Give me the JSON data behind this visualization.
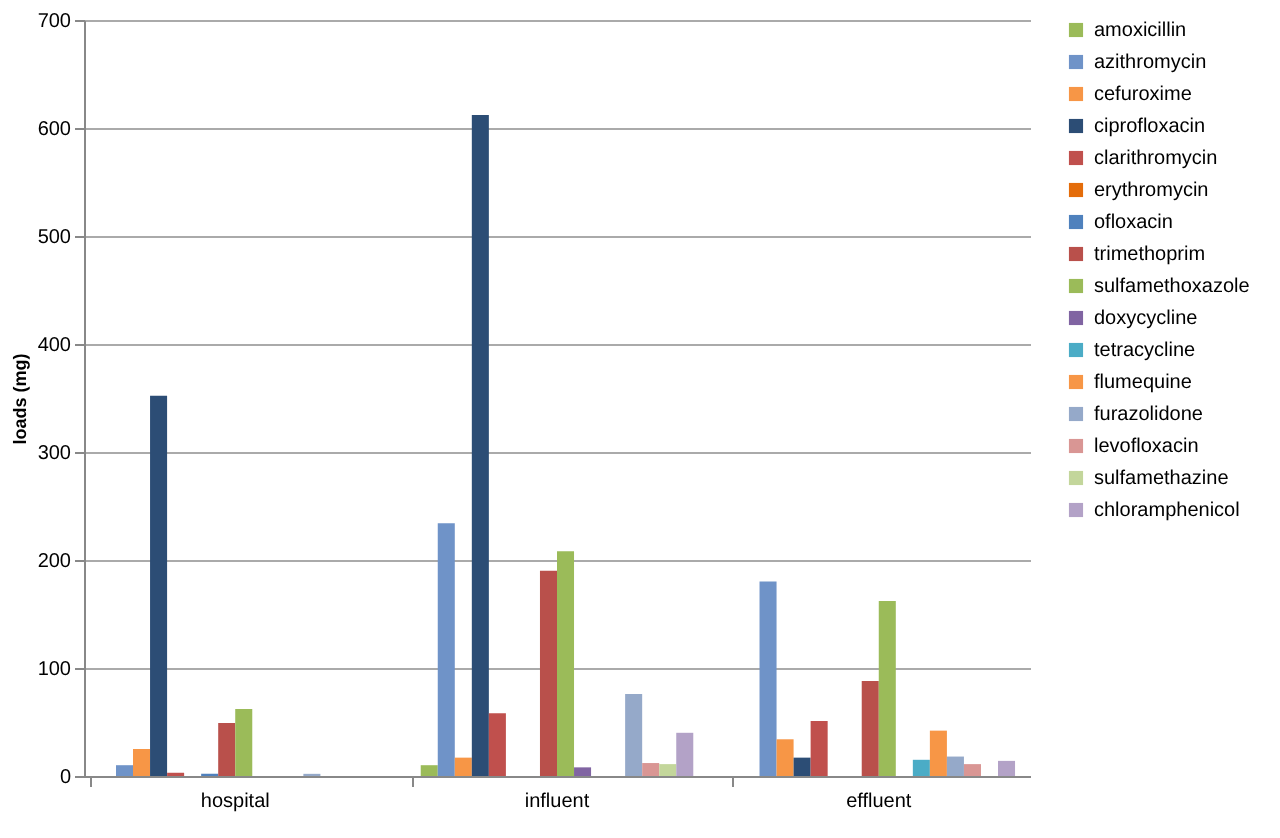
{
  "chart_data": {
    "type": "bar",
    "ylabel": "loads (mg)",
    "categories": [
      "hospital",
      "influent",
      "effluent"
    ],
    "ylim": [
      0,
      700
    ],
    "yticks": [
      0,
      100,
      200,
      300,
      400,
      500,
      600,
      700
    ],
    "grid": "y",
    "legend": "right",
    "series": [
      {
        "name": "amoxicillin",
        "color": "#9bbb59",
        "values": [
          null,
          10,
          null
        ]
      },
      {
        "name": "azithromycin",
        "color": "#6f93c8",
        "values": [
          10,
          234,
          180
        ]
      },
      {
        "name": "cefuroxime",
        "color": "#f79646",
        "values": [
          25,
          17,
          34
        ]
      },
      {
        "name": "ciprofloxacin",
        "color": "#2c4d75",
        "values": [
          352,
          612,
          17
        ]
      },
      {
        "name": "clarithromycin",
        "color": "#c0504d",
        "values": [
          3,
          58,
          51
        ]
      },
      {
        "name": "erythromycin",
        "color": "#e46c0a",
        "values": [
          null,
          null,
          null
        ]
      },
      {
        "name": "ofloxacin",
        "color": "#4f81bd",
        "values": [
          2,
          null,
          null
        ]
      },
      {
        "name": "trimethoprim",
        "color": "#b9504b",
        "values": [
          49,
          190,
          88
        ]
      },
      {
        "name": "sulfamethoxazole",
        "color": "#9bbb59",
        "values": [
          62,
          208,
          162
        ]
      },
      {
        "name": "doxycycline",
        "color": "#8064a2",
        "values": [
          null,
          8,
          null
        ]
      },
      {
        "name": "tetracycline",
        "color": "#4bacc6",
        "values": [
          null,
          null,
          15
        ]
      },
      {
        "name": "flumequine",
        "color": "#f79646",
        "values": [
          null,
          null,
          42
        ]
      },
      {
        "name": "furazolidone",
        "color": "#95a9c9",
        "values": [
          2,
          76,
          18
        ]
      },
      {
        "name": "levofloxacin",
        "color": "#d99694",
        "values": [
          null,
          12,
          11
        ]
      },
      {
        "name": "sulfamethazine",
        "color": "#c3d69b",
        "values": [
          null,
          11,
          null
        ]
      },
      {
        "name": "chloramphenicol",
        "color": "#b3a2c7",
        "values": [
          null,
          40,
          14
        ]
      }
    ]
  }
}
